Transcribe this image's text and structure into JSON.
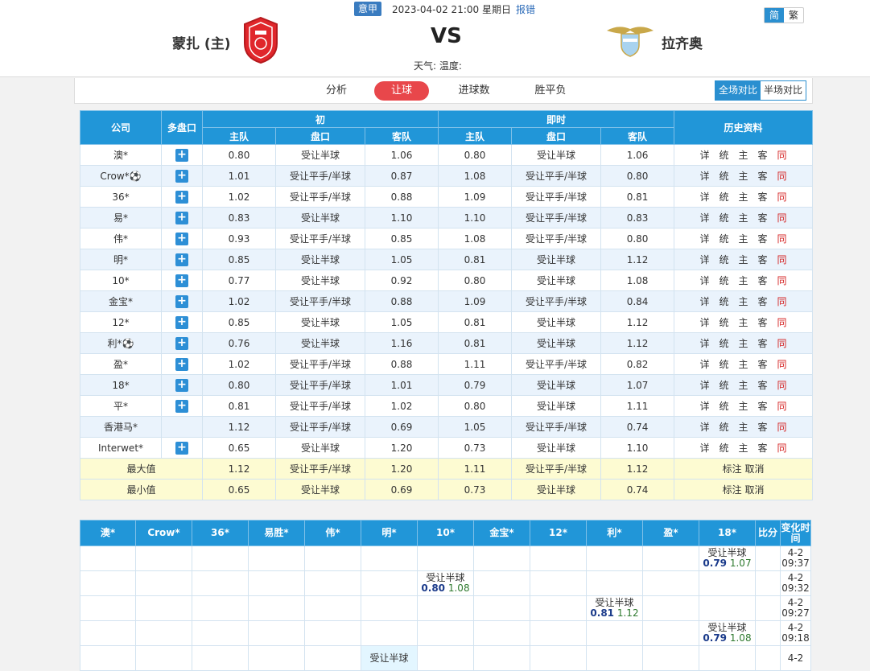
{
  "header": {
    "league": "意甲",
    "datetime": "2023-04-02 21:00 星期日",
    "report": "报错",
    "home": "蒙扎 (主)",
    "away": "拉齐奥",
    "vs": "VS",
    "weather": "天气:  温度:",
    "lang_simplified": "简",
    "lang_traditional": "繁"
  },
  "tabs": [
    "分析",
    "让球",
    "进球数",
    "胜平负"
  ],
  "active_tab": "让球",
  "compare": {
    "full": "全场对比",
    "half": "半场对比"
  },
  "odds_table": {
    "headers": {
      "company": "公司",
      "multi": "多盘口",
      "initial": "初",
      "live": "即时",
      "history": "历史资料",
      "home": "主队",
      "line": "盘口",
      "away": "客队"
    },
    "history_links": [
      "详",
      "统",
      "主",
      "客",
      "同"
    ],
    "plus_symbol": "+",
    "rows": [
      {
        "company": "澳*",
        "plus": true,
        "ih": "0.80",
        "il": "受让半球",
        "ia": "1.06",
        "lh": "0.80",
        "ll": "受让半球",
        "la": "1.06"
      },
      {
        "company": "Crow*⚽",
        "plus": true,
        "ih": "1.01",
        "il": "受让平手/半球",
        "ia": "0.87",
        "lh": "1.08",
        "ll": "受让平手/半球",
        "la": "0.80"
      },
      {
        "company": "36*",
        "plus": true,
        "ih": "1.02",
        "il": "受让平手/半球",
        "ia": "0.88",
        "lh": "1.09",
        "ll": "受让平手/半球",
        "la": "0.81"
      },
      {
        "company": "易*",
        "plus": true,
        "ih": "0.83",
        "il": "受让半球",
        "ia": "1.10",
        "lh": "1.10",
        "ll": "受让平手/半球",
        "la": "0.83"
      },
      {
        "company": "伟*",
        "plus": true,
        "ih": "0.93",
        "il": "受让平手/半球",
        "ia": "0.85",
        "lh": "1.08",
        "ll": "受让平手/半球",
        "la": "0.80"
      },
      {
        "company": "明*",
        "plus": true,
        "ih": "0.85",
        "il": "受让半球",
        "ia": "1.05",
        "lh": "0.81",
        "ll": "受让半球",
        "la": "1.12"
      },
      {
        "company": "10*",
        "plus": true,
        "ih": "0.77",
        "il": "受让半球",
        "ia": "0.92",
        "lh": "0.80",
        "ll": "受让半球",
        "la": "1.08"
      },
      {
        "company": "金宝*",
        "plus": true,
        "ih": "1.02",
        "il": "受让平手/半球",
        "ia": "0.88",
        "lh": "1.09",
        "ll": "受让平手/半球",
        "la": "0.84"
      },
      {
        "company": "12*",
        "plus": true,
        "ih": "0.85",
        "il": "受让半球",
        "ia": "1.05",
        "lh": "0.81",
        "ll": "受让半球",
        "la": "1.12"
      },
      {
        "company": "利*⚽",
        "plus": true,
        "ih": "0.76",
        "il": "受让半球",
        "ia": "1.16",
        "lh": "0.81",
        "ll": "受让半球",
        "la": "1.12"
      },
      {
        "company": "盈*",
        "plus": true,
        "ih": "1.02",
        "il": "受让平手/半球",
        "ia": "0.88",
        "lh": "1.11",
        "ll": "受让平手/半球",
        "la": "0.82"
      },
      {
        "company": "18*",
        "plus": true,
        "ih": "0.80",
        "il": "受让平手/半球",
        "ia": "1.01",
        "lh": "0.79",
        "ll": "受让半球",
        "la": "1.07"
      },
      {
        "company": "平*",
        "plus": true,
        "ih": "0.81",
        "il": "受让平手/半球",
        "ia": "1.02",
        "lh": "0.80",
        "ll": "受让半球",
        "la": "1.11"
      },
      {
        "company": "香港马*",
        "plus": false,
        "ih": "1.12",
        "il": "受让平手/半球",
        "ia": "0.69",
        "lh": "1.05",
        "ll": "受让平手/半球",
        "la": "0.74"
      },
      {
        "company": "Interwet*",
        "plus": true,
        "ih": "0.65",
        "il": "受让半球",
        "ia": "1.20",
        "lh": "0.73",
        "ll": "受让半球",
        "la": "1.10"
      }
    ],
    "summary": [
      {
        "label": "最大值",
        "ih": "1.12",
        "il": "受让平手/半球",
        "ia": "1.20",
        "lh": "1.11",
        "ll": "受让平手/半球",
        "la": "1.12",
        "actions": "标注 取消"
      },
      {
        "label": "最小值",
        "ih": "0.65",
        "il": "受让半球",
        "ia": "0.69",
        "lh": "0.73",
        "ll": "受让半球",
        "la": "0.74",
        "actions": "标注 取消"
      }
    ]
  },
  "change_table": {
    "headers": [
      "澳*",
      "Crow*",
      "36*",
      "易胜*",
      "伟*",
      "明*",
      "10*",
      "金宝*",
      "12*",
      "利*",
      "盈*",
      "18*",
      "比分",
      "变化时间"
    ],
    "rows": [
      {
        "col": 11,
        "line": "受让半球",
        "h": "0.79",
        "a": "1.07",
        "date": "4-2",
        "time": "09:37"
      },
      {
        "col": 6,
        "line": "受让半球",
        "h": "0.80",
        "a": "1.08",
        "date": "4-2",
        "time": "09:32"
      },
      {
        "col": 9,
        "line": "受让半球",
        "h": "0.81",
        "a": "1.12",
        "date": "4-2",
        "time": "09:27"
      },
      {
        "col": 11,
        "line": "受让半球",
        "h": "0.79",
        "a": "1.08",
        "date": "4-2",
        "time": "09:18"
      },
      {
        "col": 5,
        "line": "受让半球",
        "h": "",
        "a": "",
        "date": "4-2",
        "time": "",
        "highlight": true
      }
    ]
  },
  "colors": {
    "accent_blue": "#2196d8",
    "active_tab_red": "#e8474b",
    "summary_yellow": "#fdfbd2"
  }
}
